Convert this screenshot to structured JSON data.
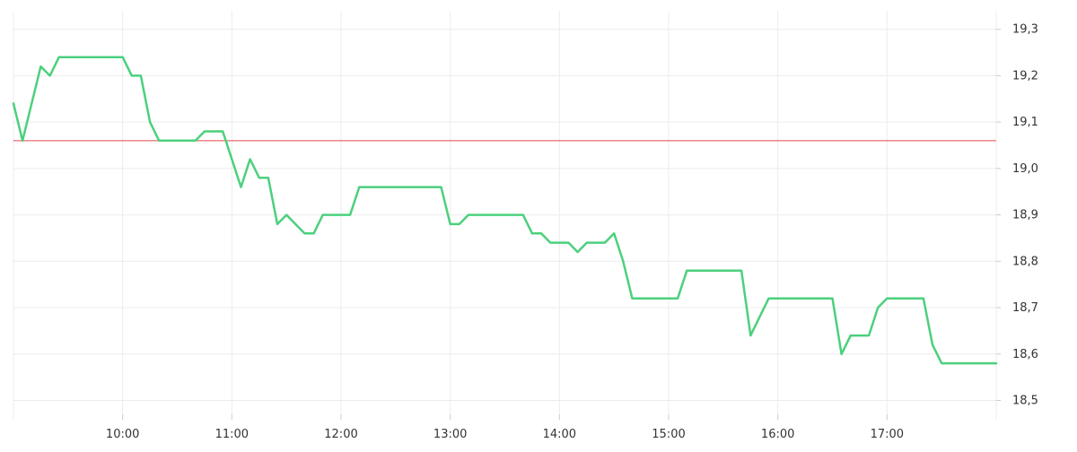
{
  "chart_data": {
    "type": "line",
    "x_axis": {
      "ticks": [
        "10:00",
        "11:00",
        "12:00",
        "13:00",
        "14:00",
        "15:00",
        "16:00",
        "17:00"
      ],
      "range": [
        "09:00",
        "18:00"
      ]
    },
    "y_axis": {
      "ticks": [
        "18,5",
        "18,6",
        "18,7",
        "18,8",
        "18,9",
        "19,0",
        "19,1",
        "19,2",
        "19,3"
      ],
      "range": [
        18.47,
        19.34
      ],
      "position": "right"
    },
    "grid": true,
    "reference_line": {
      "value": 19.06,
      "color": "#e0474c"
    },
    "series": [
      {
        "color": "#4cd07d",
        "points": [
          [
            "09:00",
            19.14
          ],
          [
            "09:05",
            19.06
          ],
          [
            "09:15",
            19.22
          ],
          [
            "09:20",
            19.2
          ],
          [
            "09:25",
            19.24
          ],
          [
            "10:00",
            19.24
          ],
          [
            "10:05",
            19.2
          ],
          [
            "10:10",
            19.2
          ],
          [
            "10:15",
            19.1
          ],
          [
            "10:20",
            19.06
          ],
          [
            "10:40",
            19.06
          ],
          [
            "10:45",
            19.08
          ],
          [
            "10:55",
            19.08
          ],
          [
            "11:05",
            18.96
          ],
          [
            "11:10",
            19.02
          ],
          [
            "11:15",
            18.98
          ],
          [
            "11:20",
            18.98
          ],
          [
            "11:25",
            18.88
          ],
          [
            "11:30",
            18.9
          ],
          [
            "11:40",
            18.86
          ],
          [
            "11:45",
            18.86
          ],
          [
            "11:50",
            18.9
          ],
          [
            "12:05",
            18.9
          ],
          [
            "12:10",
            18.96
          ],
          [
            "12:55",
            18.96
          ],
          [
            "13:00",
            18.88
          ],
          [
            "13:05",
            18.88
          ],
          [
            "13:10",
            18.9
          ],
          [
            "13:40",
            18.9
          ],
          [
            "13:45",
            18.86
          ],
          [
            "13:50",
            18.86
          ],
          [
            "13:55",
            18.84
          ],
          [
            "14:05",
            18.84
          ],
          [
            "14:10",
            18.82
          ],
          [
            "14:15",
            18.84
          ],
          [
            "14:25",
            18.84
          ],
          [
            "14:30",
            18.86
          ],
          [
            "14:35",
            18.8
          ],
          [
            "14:40",
            18.72
          ],
          [
            "15:05",
            18.72
          ],
          [
            "15:10",
            18.78
          ],
          [
            "15:40",
            18.78
          ],
          [
            "15:45",
            18.64
          ],
          [
            "15:55",
            18.72
          ],
          [
            "16:30",
            18.72
          ],
          [
            "16:35",
            18.6
          ],
          [
            "16:40",
            18.64
          ],
          [
            "16:50",
            18.64
          ],
          [
            "16:55",
            18.7
          ],
          [
            "17:00",
            18.72
          ],
          [
            "17:20",
            18.72
          ],
          [
            "17:25",
            18.62
          ],
          [
            "17:30",
            18.58
          ],
          [
            "18:00",
            18.58
          ]
        ]
      }
    ]
  }
}
